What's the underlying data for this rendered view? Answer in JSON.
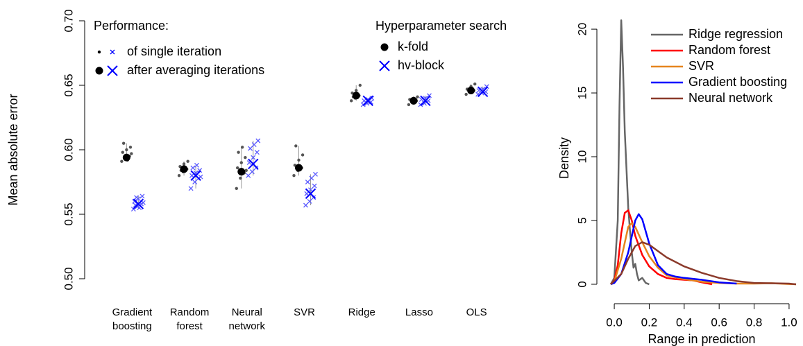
{
  "chart_data": [
    {
      "type": "strip",
      "y_label": "Mean absolute error",
      "categories": [
        "Gradient boosting",
        "Random forest",
        "Neural network",
        "SVR",
        "Ridge",
        "Lasso",
        "OLS"
      ],
      "ylim": [
        0.5,
        0.7
      ],
      "yticks": [
        {
          "value": 0.5,
          "label": "0.50"
        },
        0.55,
        {
          "value": 0.6,
          "label": "0.60"
        },
        0.65,
        {
          "value": 0.7,
          "label": "0.70"
        }
      ],
      "performance_legend": {
        "title": "Performance:",
        "entries": [
          "of single iteration",
          "after averaging iterations"
        ]
      },
      "search_legend_title": "Hyperparameter search",
      "series": [
        {
          "name": "k-fold",
          "color": "#000000",
          "iteration_color": "#555555",
          "marker": "dot",
          "values": [
            0.594,
            0.585,
            0.583,
            0.586,
            0.642,
            0.638,
            0.646
          ],
          "iterations": [
            [
              0.591,
              0.593,
              0.595,
              0.598,
              0.6,
              0.602,
              0.605,
              0.592,
              0.597,
              0.594
            ],
            [
              0.58,
              0.583,
              0.585,
              0.587,
              0.589,
              0.591,
              0.584,
              0.586
            ],
            [
              0.57,
              0.578,
              0.582,
              0.586,
              0.59,
              0.594,
              0.598,
              0.602,
              0.584
            ],
            [
              0.58,
              0.584,
              0.586,
              0.588,
              0.592,
              0.596,
              0.603,
              0.585
            ],
            [
              0.638,
              0.64,
              0.642,
              0.644,
              0.646,
              0.65,
              0.641
            ],
            [
              0.635,
              0.637,
              0.638,
              0.639,
              0.64,
              0.641
            ],
            [
              0.643,
              0.645,
              0.646,
              0.647,
              0.649,
              0.651
            ]
          ]
        },
        {
          "name": "hv-block",
          "color": "#0000ff",
          "iteration_color": "#5a5aff",
          "marker": "x",
          "values": [
            0.558,
            0.58,
            0.589,
            0.566,
            0.638,
            0.638,
            0.645
          ],
          "iterations": [
            [
              0.554,
              0.556,
              0.558,
              0.56,
              0.562,
              0.564,
              0.557,
              0.555,
              0.559,
              0.563
            ],
            [
              0.57,
              0.575,
              0.578,
              0.58,
              0.582,
              0.584,
              0.586,
              0.588,
              0.579
            ],
            [
              0.58,
              0.583,
              0.586,
              0.59,
              0.594,
              0.598,
              0.601,
              0.604,
              0.607
            ],
            [
              0.557,
              0.56,
              0.563,
              0.566,
              0.569,
              0.572,
              0.575,
              0.578,
              0.581
            ],
            [
              0.635,
              0.636,
              0.637,
              0.638,
              0.639,
              0.64
            ],
            [
              0.635,
              0.636,
              0.638,
              0.639,
              0.64,
              0.642
            ],
            [
              0.643,
              0.644,
              0.645,
              0.646,
              0.647,
              0.649
            ]
          ]
        }
      ]
    },
    {
      "type": "line",
      "x_label": "Range in prediction",
      "y_label": "Density",
      "xlim": [
        -0.04,
        1.04
      ],
      "ylim": [
        -0.6,
        21.2
      ],
      "xticks": [
        {
          "value": 0,
          "label": "0.0"
        },
        0.2,
        0.4,
        0.6,
        0.8,
        {
          "value": 1,
          "label": "1.0"
        }
      ],
      "yticks": [
        0,
        5,
        10,
        15,
        20
      ],
      "legend": "top-right",
      "series": [
        {
          "name": "Ridge regression",
          "color": "#666666",
          "x": [
            -0.02,
            0.0,
            0.02,
            0.03,
            0.04,
            0.05,
            0.06,
            0.07,
            0.08,
            0.09,
            0.1,
            0.11,
            0.12,
            0.13,
            0.14,
            0.16,
            0.18,
            0.2
          ],
          "values": [
            0,
            0.5,
            5,
            14,
            20.7,
            17,
            12,
            9,
            6,
            4.2,
            2.5,
            1.3,
            1.6,
            0.8,
            0.3,
            0.5,
            0.1,
            0
          ]
        },
        {
          "name": "Random forest",
          "color": "#ff0000",
          "x": [
            -0.02,
            0.0,
            0.02,
            0.04,
            0.06,
            0.08,
            0.1,
            0.12,
            0.16,
            0.2,
            0.25,
            0.3,
            0.35,
            0.4,
            0.45,
            0.5,
            0.56
          ],
          "values": [
            0,
            0.3,
            1.5,
            4,
            5.6,
            5.8,
            5,
            3.8,
            2.3,
            1.4,
            0.8,
            0.5,
            0.4,
            0.35,
            0.3,
            0.15,
            0
          ]
        },
        {
          "name": "SVR",
          "color": "#e6851e",
          "x": [
            0.0,
            0.04,
            0.08,
            0.1,
            0.12,
            0.16,
            0.2,
            0.25,
            0.3,
            0.4,
            0.5,
            0.6,
            0.7,
            0.8,
            0.9,
            1.0,
            1.04
          ],
          "values": [
            0.2,
            2,
            4.5,
            4.8,
            4.5,
            3.3,
            2.2,
            1.3,
            0.7,
            0.4,
            0.2,
            0.1,
            0.05,
            0.05,
            0.08,
            0.02,
            0
          ]
        },
        {
          "name": "Gradient boosting",
          "color": "#0000ff",
          "x": [
            -0.02,
            0.0,
            0.04,
            0.08,
            0.12,
            0.14,
            0.16,
            0.2,
            0.25,
            0.3,
            0.35,
            0.4,
            0.5,
            0.6,
            0.7
          ],
          "values": [
            0,
            0.1,
            0.8,
            2.5,
            5,
            5.5,
            5.1,
            3.2,
            1.5,
            0.8,
            0.6,
            0.5,
            0.35,
            0.15,
            0.05
          ]
        },
        {
          "name": "Neural network",
          "color": "#8b3a2b",
          "x": [
            -0.02,
            0.04,
            0.08,
            0.12,
            0.16,
            0.2,
            0.25,
            0.3,
            0.4,
            0.5,
            0.6,
            0.7,
            0.8,
            0.9,
            1.0,
            1.04
          ],
          "values": [
            0,
            0.8,
            2,
            3,
            3.3,
            3.1,
            2.6,
            2.1,
            1.4,
            0.9,
            0.5,
            0.25,
            0.1,
            0.08,
            0.05,
            0
          ]
        }
      ]
    }
  ]
}
